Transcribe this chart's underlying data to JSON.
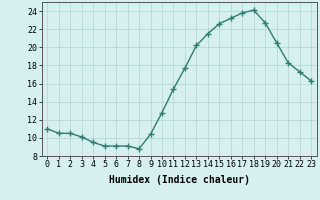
{
  "x": [
    0,
    1,
    2,
    3,
    4,
    5,
    6,
    7,
    8,
    9,
    10,
    11,
    12,
    13,
    14,
    15,
    16,
    17,
    18,
    19,
    20,
    21,
    22,
    23
  ],
  "y": [
    11.0,
    10.5,
    10.5,
    10.1,
    9.5,
    9.1,
    9.1,
    9.1,
    8.8,
    10.4,
    12.8,
    15.4,
    17.7,
    20.2,
    21.5,
    22.6,
    23.2,
    23.8,
    24.1,
    22.7,
    20.5,
    18.3,
    17.3,
    16.3
  ],
  "line_color": "#2e7d6e",
  "marker": "+",
  "marker_size": 4,
  "bg_color": "#d6f0f0",
  "grid_color": "#b8d8d8",
  "xlabel": "Humidex (Indice chaleur)",
  "ylim": [
    8,
    25
  ],
  "yticks": [
    8,
    10,
    12,
    14,
    16,
    18,
    20,
    22,
    24
  ],
  "xticks": [
    0,
    1,
    2,
    3,
    4,
    5,
    6,
    7,
    8,
    9,
    10,
    11,
    12,
    13,
    14,
    15,
    16,
    17,
    18,
    19,
    20,
    21,
    22,
    23
  ],
  "xlabel_fontsize": 7,
  "tick_fontsize": 6,
  "line_width": 1.0
}
